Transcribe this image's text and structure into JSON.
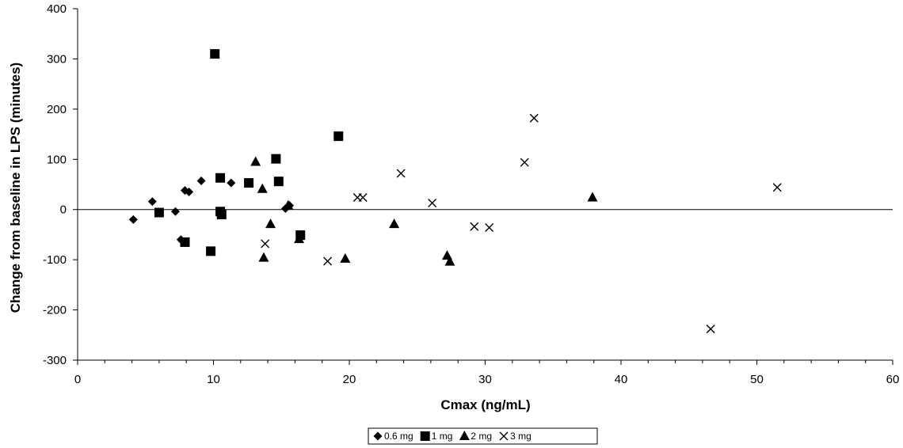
{
  "chart_data": {
    "type": "scatter",
    "title": "",
    "xlabel": "Cmax (ng/mL)",
    "ylabel": "Change from baseline in LPS (minutes)",
    "xlim": [
      0,
      60
    ],
    "ylim": [
      -300,
      400
    ],
    "x_ticks": [
      0,
      10,
      20,
      30,
      40,
      50,
      60
    ],
    "x_tick_labels": [
      "0",
      "10",
      "20",
      "30",
      "40",
      "50",
      "60"
    ],
    "y_ticks": [
      -300,
      -200,
      -100,
      0,
      100,
      200,
      300,
      400
    ],
    "y_tick_labels": [
      "-300",
      "-200",
      "-100",
      "0",
      "100",
      "200",
      "300",
      "400"
    ],
    "grid": false,
    "legend_position": "bottom",
    "series": [
      {
        "name": "0.6 mg",
        "marker": "diamond",
        "points": [
          {
            "x": 4.1,
            "y": -20
          },
          {
            "x": 5.5,
            "y": 16
          },
          {
            "x": 7.2,
            "y": -4
          },
          {
            "x": 7.6,
            "y": -60
          },
          {
            "x": 7.9,
            "y": 38
          },
          {
            "x": 8.2,
            "y": 35
          },
          {
            "x": 9.1,
            "y": 57
          },
          {
            "x": 11.3,
            "y": 53
          },
          {
            "x": 15.3,
            "y": 2
          },
          {
            "x": 15.6,
            "y": 8
          }
        ]
      },
      {
        "name": "1 mg",
        "marker": "square",
        "points": [
          {
            "x": 10.1,
            "y": 310
          },
          {
            "x": 6.0,
            "y": -6
          },
          {
            "x": 7.9,
            "y": -65
          },
          {
            "x": 9.8,
            "y": -83
          },
          {
            "x": 10.5,
            "y": 63
          },
          {
            "x": 10.5,
            "y": -4
          },
          {
            "x": 10.6,
            "y": -10
          },
          {
            "x": 12.6,
            "y": 53
          },
          {
            "x": 14.6,
            "y": 101
          },
          {
            "x": 14.8,
            "y": 56
          },
          {
            "x": 16.4,
            "y": -51
          },
          {
            "x": 19.2,
            "y": 146
          }
        ]
      },
      {
        "name": "2 mg",
        "marker": "triangle",
        "points": [
          {
            "x": 13.1,
            "y": 95
          },
          {
            "x": 13.6,
            "y": 41
          },
          {
            "x": 13.7,
            "y": -96
          },
          {
            "x": 14.2,
            "y": -29
          },
          {
            "x": 15.5,
            "y": 8
          },
          {
            "x": 16.3,
            "y": -59
          },
          {
            "x": 19.7,
            "y": -98
          },
          {
            "x": 23.3,
            "y": -29
          },
          {
            "x": 27.2,
            "y": -92
          },
          {
            "x": 27.4,
            "y": -104
          },
          {
            "x": 37.9,
            "y": 24
          }
        ]
      },
      {
        "name": "3 mg",
        "marker": "x",
        "points": [
          {
            "x": 13.8,
            "y": -68
          },
          {
            "x": 18.4,
            "y": -103
          },
          {
            "x": 20.6,
            "y": 24
          },
          {
            "x": 21.0,
            "y": 24
          },
          {
            "x": 23.8,
            "y": 72
          },
          {
            "x": 26.1,
            "y": 13
          },
          {
            "x": 29.2,
            "y": -34
          },
          {
            "x": 30.3,
            "y": -36
          },
          {
            "x": 32.9,
            "y": 94
          },
          {
            "x": 33.6,
            "y": 182
          },
          {
            "x": 46.6,
            "y": -238
          },
          {
            "x": 51.5,
            "y": 44
          }
        ]
      }
    ]
  }
}
